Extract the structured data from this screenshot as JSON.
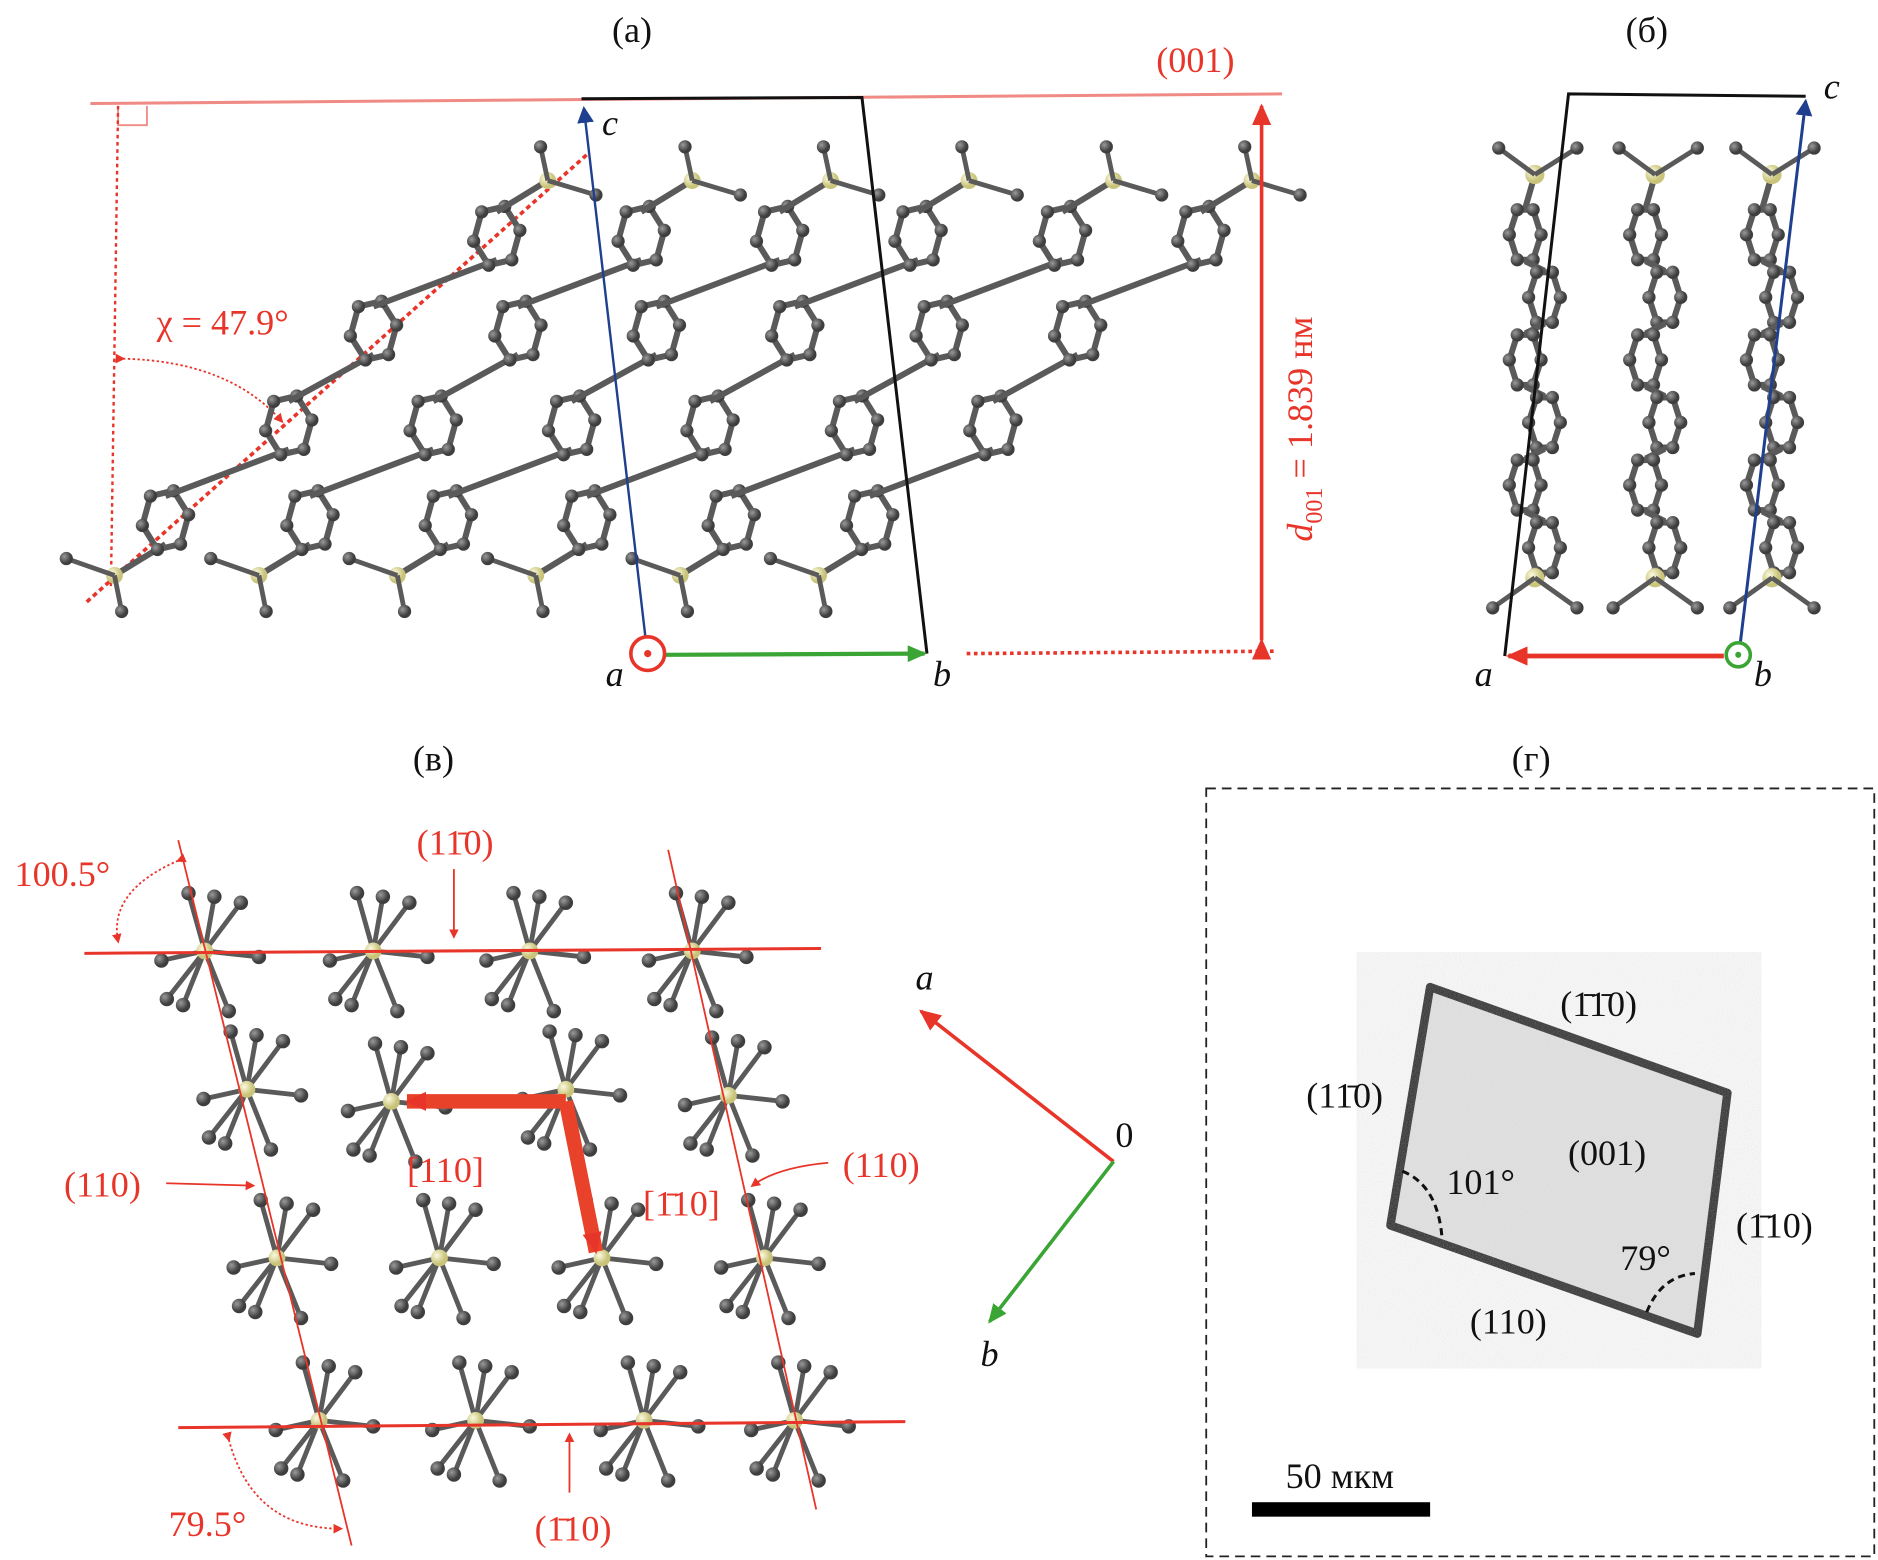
{
  "colors": {
    "red": "#e8352a",
    "green": "#3aa535",
    "blue": "#1f3f8f",
    "carbon": "#5a5a5a",
    "sulfur": "#e6e3a0"
  },
  "panel_a": {
    "label": "(а)",
    "plane": "(001)",
    "angle": "χ = 47.9°",
    "spacing_d": "d",
    "spacing_sub": "001",
    "spacing_val": " = 1.839 нм",
    "axis_a": "a",
    "axis_b": "b",
    "axis_c": "c"
  },
  "panel_b": {
    "label": "(б)",
    "axis_a": "a",
    "axis_b": "b",
    "axis_c": "c"
  },
  "panel_c": {
    "label": "(в)",
    "angle_top": "100.5°",
    "angle_bottom": "79.5°",
    "plane_top": "(11̄0)",
    "plane_bottom": "(1̄10)",
    "plane_left": "(110)",
    "plane_right": "(110)",
    "dir_left": "[110]",
    "dir_down": "[1̄10]",
    "axis_a": "a",
    "axis_b": "b",
    "origin": "0"
  },
  "panel_d": {
    "label": "(г)",
    "face_top": "(1̄1̄0)",
    "face_left": "(11̄0)",
    "face_right": "(1̄10)",
    "face_bottom": "(110)",
    "face_center": "(001)",
    "angle_left": "101°",
    "angle_right": "79°",
    "scale": "50 мкм"
  }
}
